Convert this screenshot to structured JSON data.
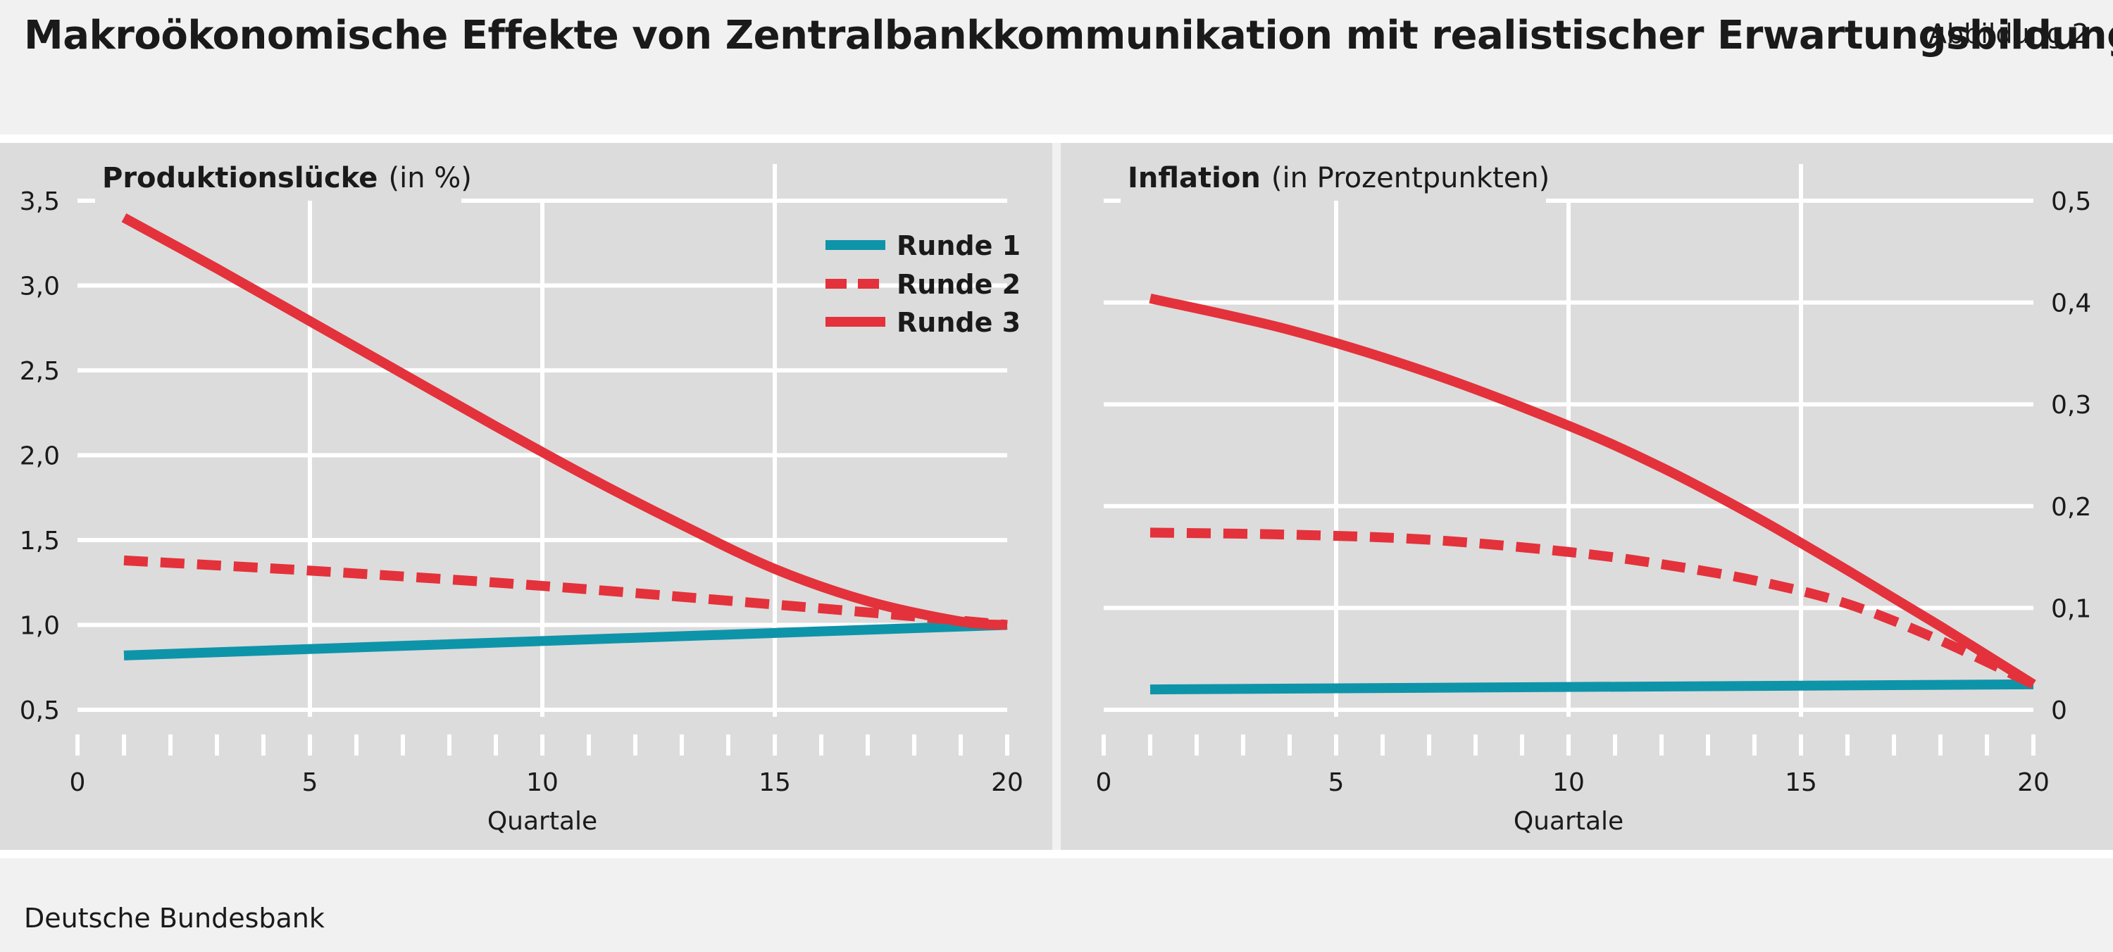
{
  "header": {
    "title": "Makroökonomische Effekte von Zentralbankkommunikation mit realistischer Erwartungsbildung",
    "figure_label": "Abbildung 2"
  },
  "footer": {
    "source": "Deutsche Bundesbank"
  },
  "colors": {
    "runde1": "#0e94a9",
    "runde2": "#e3323b",
    "runde3": "#e3323b",
    "panel": "#dcdcdc",
    "grid": "#ffffff"
  },
  "chart_data": [
    {
      "type": "line",
      "title_bold": "Produktionslücke",
      "title_unit": "(in %)",
      "xlabel": "Quartale",
      "xlim": [
        0,
        20
      ],
      "ylim": [
        0.5,
        3.5
      ],
      "x_ticks": [
        0,
        5,
        10,
        15,
        20
      ],
      "x_minor_step": 1,
      "y_ticks": [
        0.5,
        1.0,
        1.5,
        2.0,
        2.5,
        3.0,
        3.5
      ],
      "y_tick_labels": [
        "0,5",
        "1,0",
        "1,5",
        "2,0",
        "2,5",
        "3,0",
        "3,5"
      ],
      "y_axis_side": "left",
      "grid": true,
      "legend_position": "top-right",
      "legend": [
        "Runde 1",
        "Runde 2",
        "Runde 3"
      ],
      "series": [
        {
          "name": "Runde 1",
          "style": "solid",
          "color": "#0e94a9",
          "x": [
            1,
            20
          ],
          "y": [
            0.82,
            1.0
          ]
        },
        {
          "name": "Runde 2",
          "style": "dashed",
          "color": "#e3323b",
          "x": [
            1,
            5,
            10,
            15,
            18,
            20
          ],
          "y": [
            1.38,
            1.32,
            1.23,
            1.12,
            1.05,
            1.0
          ]
        },
        {
          "name": "Runde 3",
          "style": "solid",
          "color": "#e3323b",
          "x": [
            1,
            3,
            5,
            7,
            9,
            11,
            13,
            15,
            17,
            19,
            20
          ],
          "y": [
            3.4,
            3.1,
            2.79,
            2.48,
            2.17,
            1.87,
            1.59,
            1.33,
            1.14,
            1.02,
            1.0
          ]
        }
      ]
    },
    {
      "type": "line",
      "title_bold": "Inflation",
      "title_unit": "(in Prozentpunkten)",
      "xlabel": "Quartale",
      "xlim": [
        0,
        20
      ],
      "ylim": [
        0,
        0.5
      ],
      "x_ticks": [
        0,
        5,
        10,
        15,
        20
      ],
      "x_minor_step": 1,
      "y_ticks": [
        0,
        0.1,
        0.2,
        0.3,
        0.4,
        0.5
      ],
      "y_tick_labels": [
        "0",
        "0,1",
        "0,2",
        "0,3",
        "0,4",
        "0,5"
      ],
      "y_axis_side": "right",
      "grid": true,
      "series": [
        {
          "name": "Runde 1",
          "style": "solid",
          "color": "#0e94a9",
          "x": [
            1,
            20
          ],
          "y": [
            0.02,
            0.025
          ]
        },
        {
          "name": "Runde 2",
          "style": "dashed",
          "color": "#e3323b",
          "x": [
            1,
            4,
            7,
            10,
            12,
            14,
            16,
            18,
            20
          ],
          "y": [
            0.174,
            0.172,
            0.167,
            0.155,
            0.143,
            0.127,
            0.104,
            0.068,
            0.025
          ]
        },
        {
          "name": "Runde 3",
          "style": "solid",
          "color": "#e3323b",
          "x": [
            1,
            4,
            7,
            10,
            12,
            14,
            16,
            18,
            20
          ],
          "y": [
            0.404,
            0.373,
            0.331,
            0.279,
            0.238,
            0.19,
            0.137,
            0.082,
            0.025
          ]
        }
      ]
    }
  ]
}
